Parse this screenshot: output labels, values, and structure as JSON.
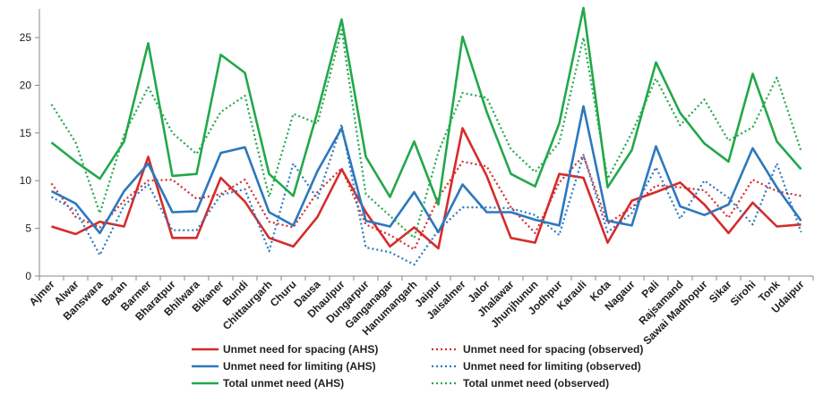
{
  "chart_data": {
    "type": "line",
    "title": "",
    "xlabel": "",
    "ylabel": "",
    "ylim": [
      0,
      28
    ],
    "yticks": [
      0,
      5,
      10,
      15,
      20,
      25
    ],
    "grid": false,
    "legend_position": "bottom",
    "categories": [
      "Ajmer",
      "Alwar",
      "Banswara",
      "Baran",
      "Barmer",
      "Bharatpur",
      "Bhilwara",
      "Bikaner",
      "Bundi",
      "Chittaurgarh",
      "Churu",
      "Dausa",
      "Dhaulpur",
      "Dungarpur",
      "Ganganagar",
      "Hanumangarh",
      "Jaipur",
      "Jaisalmer",
      "Jalor",
      "Jhalawar",
      "Jhunjhunun",
      "Jodhpur",
      "Karauli",
      "Kota",
      "Nagaur",
      "Pali",
      "Rajsamand",
      "Sawai Madhopur",
      "Sikar",
      "Sirohi",
      "Tonk",
      "Udaipur"
    ],
    "series": [
      {
        "name": "Unmet need for spacing (AHS)",
        "color": "#d62b2b",
        "style": "solid",
        "values": [
          5.2,
          4.4,
          5.7,
          5.2,
          12.5,
          4.0,
          4.0,
          10.3,
          7.8,
          4.0,
          3.1,
          6.2,
          11.2,
          6.7,
          3.1,
          5.1,
          2.9,
          15.5,
          10.5,
          4.0,
          3.5,
          10.7,
          10.3,
          3.5,
          7.9,
          8.8,
          9.8,
          7.5,
          4.5,
          7.7,
          5.2,
          5.4
        ]
      },
      {
        "name": "Unmet need for spacing (observed)",
        "color": "#d62b2b",
        "style": "dotted",
        "values": [
          9.7,
          6.2,
          5.1,
          7.9,
          10.0,
          10.1,
          8.1,
          8.6,
          10.1,
          5.7,
          5.1,
          8.8,
          11.3,
          5.4,
          4.3,
          2.8,
          8.2,
          12.0,
          11.5,
          7.2,
          4.5,
          9.8,
          12.6,
          5.5,
          7.2,
          9.5,
          9.3,
          9.0,
          6.1,
          10.1,
          8.9,
          8.4
        ]
      },
      {
        "name": "Unmet need for limiting (AHS)",
        "color": "#2c78bd",
        "style": "solid",
        "values": [
          8.9,
          7.6,
          4.5,
          8.9,
          11.8,
          6.7,
          6.8,
          12.9,
          13.5,
          6.7,
          5.3,
          11.0,
          15.5,
          5.8,
          5.2,
          8.8,
          4.6,
          9.6,
          6.7,
          6.7,
          5.9,
          5.3,
          17.8,
          5.8,
          5.3,
          13.6,
          7.3,
          6.4,
          7.5,
          13.4,
          9.3,
          5.8
        ]
      },
      {
        "name": "Unmet need for limiting (observed)",
        "color": "#2c78bd",
        "style": "dotted",
        "values": [
          8.3,
          6.9,
          2.2,
          7.4,
          9.6,
          4.8,
          4.8,
          8.5,
          9.1,
          2.6,
          11.8,
          8.1,
          15.9,
          3.0,
          2.5,
          1.2,
          4.8,
          7.2,
          7.2,
          7.1,
          6.4,
          4.3,
          12.7,
          4.6,
          6.6,
          11.4,
          6.0,
          10.0,
          8.2,
          5.4,
          11.8,
          4.6
        ]
      },
      {
        "name": "Total unmet need (AHS)",
        "color": "#22a84a",
        "style": "solid",
        "values": [
          14.0,
          12.0,
          10.2,
          14.1,
          24.4,
          10.5,
          10.7,
          23.2,
          21.3,
          10.7,
          8.4,
          17.2,
          26.9,
          12.5,
          8.3,
          14.1,
          7.5,
          25.1,
          17.2,
          10.7,
          9.4,
          16.0,
          28.1,
          9.3,
          13.2,
          22.4,
          17.1,
          13.9,
          12.0,
          21.2,
          14.1,
          11.2
        ]
      },
      {
        "name": "Total unmet need (observed)",
        "color": "#22a84a",
        "style": "dotted",
        "values": [
          18.0,
          14.0,
          6.6,
          14.8,
          19.8,
          15.0,
          12.8,
          17.2,
          18.9,
          8.3,
          17.0,
          16.0,
          25.8,
          8.6,
          6.3,
          4.0,
          13.0,
          19.2,
          18.7,
          13.3,
          10.9,
          14.0,
          25.0,
          10.2,
          15.0,
          20.7,
          15.8,
          18.5,
          14.2,
          15.6,
          20.8,
          13.1
        ]
      }
    ]
  }
}
